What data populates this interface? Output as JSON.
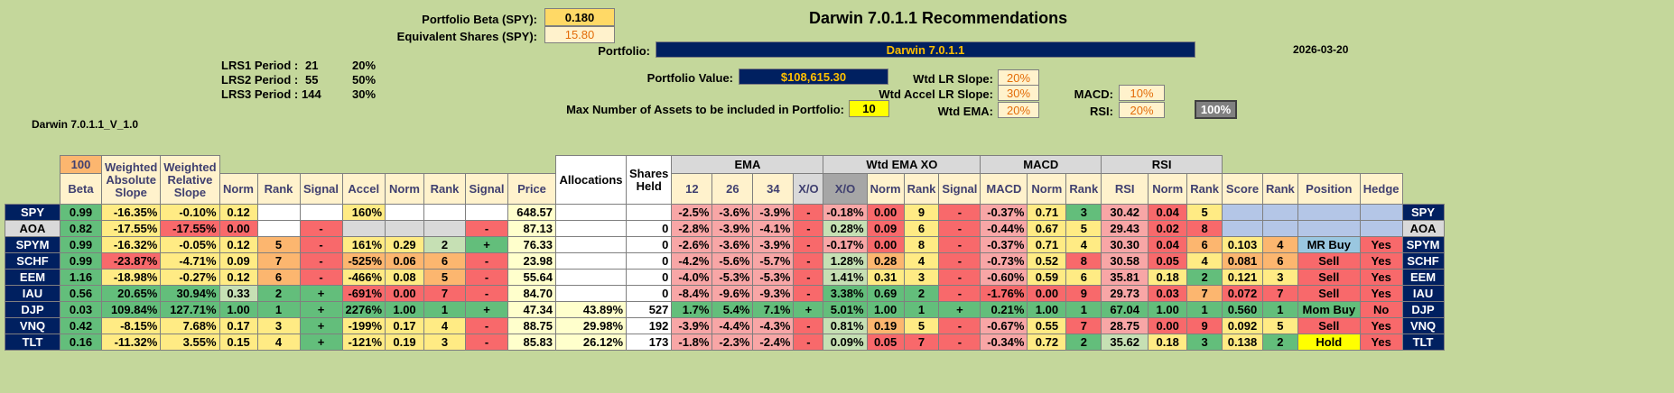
{
  "title": "Darwin 7.0.1.1 Recommendations",
  "date": "2026-03-20",
  "portfolio_beta_label": "Portfolio Beta (SPY):",
  "portfolio_beta": "0.180",
  "equiv_shares_label": "Equivalent Shares (SPY):",
  "equiv_shares": "15.80",
  "portfolio_label": "Portfolio:",
  "portfolio_name": "Darwin 7.0.1.1",
  "portfolio_value_label": "Portfolio Value:",
  "portfolio_value": "$108,615.30",
  "max_assets_label": "Max Number of Assets to be included in Portfolio:",
  "max_assets": "10",
  "version_label": "Darwin 7.0.1.1_V_1.0",
  "lrs": [
    {
      "label": "LRS1 Period :",
      "period": "21",
      "pct": "20%"
    },
    {
      "label": "LRS2 Period :",
      "period": "55",
      "pct": "50%"
    },
    {
      "label": "LRS3 Period :",
      "period": "144",
      "pct": "30%"
    }
  ],
  "weights": {
    "wtd_lr_slope_label": "Wtd LR Slope:",
    "wtd_lr_slope": "20%",
    "wtd_accel_label": "Wtd Accel LR Slope:",
    "wtd_accel": "30%",
    "wtd_ema_label": "Wtd EMA:",
    "wtd_ema": "20%",
    "macd_label": "MACD:",
    "macd": "10%",
    "rsi_label": "RSI:",
    "rsi": "20%",
    "total": "100%"
  },
  "group_headers": {
    "beta_val": "100",
    "weighted1": "Weighted",
    "weighted2": "Weighted",
    "ema": "EMA",
    "wtd_ema_xo": "Wtd EMA XO",
    "macd": "MACD",
    "rsi": "RSI",
    "allocations": "Allocations",
    "shares_held": "Shares Held"
  },
  "columns": [
    "Beta",
    "Absolute Slope",
    "Relative Slope",
    "Norm",
    "Rank",
    "Signal",
    "Accel",
    "Norm",
    "Rank",
    "Signal",
    "Price",
    "12",
    "26",
    "34",
    "X/O",
    "X/O",
    "Norm",
    "Rank",
    "Signal",
    "MACD",
    "Norm",
    "Rank",
    "RSI",
    "Norm",
    "Rank",
    "Score",
    "Rank",
    "Position",
    "Hedge"
  ],
  "rows": [
    {
      "t": "SPY",
      "beta": "0.99",
      "abs": "-16.35%",
      "rel": "-0.10%",
      "n1": "0.12",
      "r1": "",
      "s1": "",
      "acc": "160%",
      "n2": "",
      "r2": "",
      "s2": "",
      "price": "648.57",
      "alloc": "",
      "shares": "",
      "e12": "-2.5%",
      "e26": "-3.6%",
      "e34": "-3.9%",
      "xo1": "-",
      "xo2": "-0.18%",
      "n3": "0.00",
      "r3": "9",
      "s3": "-",
      "macd": "-0.37%",
      "n4": "0.71",
      "r4": "3",
      "rsi": "30.42",
      "n5": "0.04",
      "r5": "5",
      "score": "",
      "rk": "",
      "pos": "",
      "hedge": ""
    },
    {
      "t": "AOA",
      "beta": "0.82",
      "abs": "-17.55%",
      "rel": "-17.55%",
      "n1": "0.00",
      "r1": "",
      "s1": "-",
      "acc": "",
      "n2": "",
      "r2": "",
      "s2": "-",
      "price": "87.13",
      "alloc": "",
      "shares": "0",
      "e12": "-2.8%",
      "e26": "-3.9%",
      "e34": "-4.1%",
      "xo1": "-",
      "xo2": "0.28%",
      "n3": "0.09",
      "r3": "6",
      "s3": "-",
      "macd": "-0.44%",
      "n4": "0.67",
      "r4": "5",
      "rsi": "29.43",
      "n5": "0.02",
      "r5": "8",
      "score": "",
      "rk": "",
      "pos": "",
      "hedge": ""
    },
    {
      "t": "SPYM",
      "beta": "0.99",
      "abs": "-16.32%",
      "rel": "-0.05%",
      "n1": "0.12",
      "r1": "5",
      "s1": "-",
      "acc": "161%",
      "n2": "0.29",
      "r2": "2",
      "s2": "+",
      "price": "76.33",
      "alloc": "",
      "shares": "0",
      "e12": "-2.6%",
      "e26": "-3.6%",
      "e34": "-3.9%",
      "xo1": "-",
      "xo2": "-0.17%",
      "n3": "0.00",
      "r3": "8",
      "s3": "-",
      "macd": "-0.37%",
      "n4": "0.71",
      "r4": "4",
      "rsi": "30.30",
      "n5": "0.04",
      "r5": "6",
      "score": "0.103",
      "rk": "4",
      "pos": "MR Buy",
      "hedge": "Yes"
    },
    {
      "t": "SCHF",
      "beta": "0.99",
      "abs": "-23.87%",
      "rel": "-4.71%",
      "n1": "0.09",
      "r1": "7",
      "s1": "-",
      "acc": "-525%",
      "n2": "0.06",
      "r2": "6",
      "s2": "-",
      "price": "23.98",
      "alloc": "",
      "shares": "0",
      "e12": "-4.2%",
      "e26": "-5.6%",
      "e34": "-5.7%",
      "xo1": "-",
      "xo2": "1.28%",
      "n3": "0.28",
      "r3": "4",
      "s3": "-",
      "macd": "-0.73%",
      "n4": "0.52",
      "r4": "8",
      "rsi": "30.58",
      "n5": "0.05",
      "r5": "4",
      "score": "0.081",
      "rk": "6",
      "pos": "Sell",
      "hedge": "Yes"
    },
    {
      "t": "EEM",
      "beta": "1.16",
      "abs": "-18.98%",
      "rel": "-0.27%",
      "n1": "0.12",
      "r1": "6",
      "s1": "-",
      "acc": "-466%",
      "n2": "0.08",
      "r2": "5",
      "s2": "-",
      "price": "55.64",
      "alloc": "",
      "shares": "0",
      "e12": "-4.0%",
      "e26": "-5.3%",
      "e34": "-5.3%",
      "xo1": "-",
      "xo2": "1.41%",
      "n3": "0.31",
      "r3": "3",
      "s3": "-",
      "macd": "-0.60%",
      "n4": "0.59",
      "r4": "6",
      "rsi": "35.81",
      "n5": "0.18",
      "r5": "2",
      "score": "0.121",
      "rk": "3",
      "pos": "Sell",
      "hedge": "Yes"
    },
    {
      "t": "IAU",
      "beta": "0.56",
      "abs": "20.65%",
      "rel": "30.94%",
      "n1": "0.33",
      "r1": "2",
      "s1": "+",
      "acc": "-691%",
      "n2": "0.00",
      "r2": "7",
      "s2": "-",
      "price": "84.70",
      "alloc": "",
      "shares": "0",
      "e12": "-8.4%",
      "e26": "-9.6%",
      "e34": "-9.3%",
      "xo1": "-",
      "xo2": "3.38%",
      "n3": "0.69",
      "r3": "2",
      "s3": "-",
      "macd": "-1.76%",
      "n4": "0.00",
      "r4": "9",
      "rsi": "29.73",
      "n5": "0.03",
      "r5": "7",
      "score": "0.072",
      "rk": "7",
      "pos": "Sell",
      "hedge": "Yes"
    },
    {
      "t": "DJP",
      "beta": "0.03",
      "abs": "109.84%",
      "rel": "127.71%",
      "n1": "1.00",
      "r1": "1",
      "s1": "+",
      "acc": "2276%",
      "n2": "1.00",
      "r2": "1",
      "s2": "+",
      "price": "47.34",
      "alloc": "43.89%",
      "shares": "527",
      "e12": "1.7%",
      "e26": "5.4%",
      "e34": "7.1%",
      "xo1": "+",
      "xo2": "5.01%",
      "n3": "1.00",
      "r3": "1",
      "s3": "+",
      "macd": "0.21%",
      "n4": "1.00",
      "r4": "1",
      "rsi": "67.04",
      "n5": "1.00",
      "r5": "1",
      "score": "0.560",
      "rk": "1",
      "pos": "Mom Buy",
      "hedge": "No"
    },
    {
      "t": "VNQ",
      "beta": "0.42",
      "abs": "-8.15%",
      "rel": "7.68%",
      "n1": "0.17",
      "r1": "3",
      "s1": "+",
      "acc": "-199%",
      "n2": "0.17",
      "r2": "4",
      "s2": "-",
      "price": "88.75",
      "alloc": "29.98%",
      "shares": "192",
      "e12": "-3.9%",
      "e26": "-4.4%",
      "e34": "-4.3%",
      "xo1": "-",
      "xo2": "0.81%",
      "n3": "0.19",
      "r3": "5",
      "s3": "-",
      "macd": "-0.67%",
      "n4": "0.55",
      "r4": "7",
      "rsi": "28.75",
      "n5": "0.00",
      "r5": "9",
      "score": "0.092",
      "rk": "5",
      "pos": "Sell",
      "hedge": "Yes"
    },
    {
      "t": "TLT",
      "beta": "0.16",
      "abs": "-11.32%",
      "rel": "3.55%",
      "n1": "0.15",
      "r1": "4",
      "s1": "+",
      "acc": "-121%",
      "n2": "0.19",
      "r2": "3",
      "s2": "-",
      "price": "85.83",
      "alloc": "26.12%",
      "shares": "173",
      "e12": "-1.8%",
      "e26": "-2.3%",
      "e34": "-2.4%",
      "xo1": "-",
      "xo2": "0.09%",
      "n3": "0.05",
      "r3": "7",
      "s3": "-",
      "macd": "-0.34%",
      "n4": "0.72",
      "r4": "2",
      "rsi": "35.62",
      "n5": "0.18",
      "r5": "3",
      "score": "0.138",
      "rk": "2",
      "pos": "Hold",
      "hedge": "Yes"
    }
  ]
}
